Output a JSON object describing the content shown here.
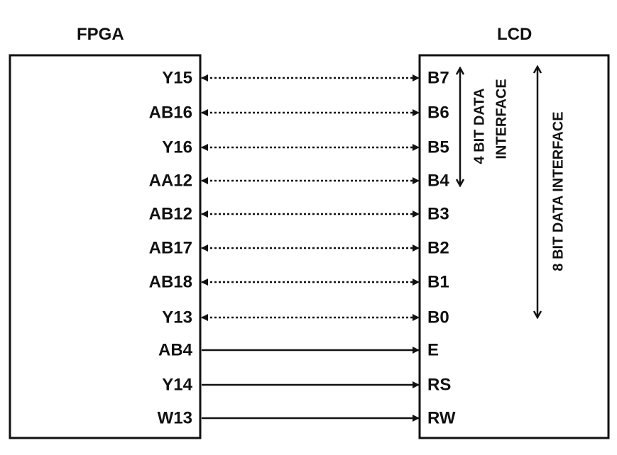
{
  "fpga": {
    "title": "FPGA"
  },
  "lcd": {
    "title": "LCD"
  },
  "connections": [
    {
      "fpga_pin": "Y15",
      "lcd_pin": "B7",
      "style": "dotted",
      "direction": "bidirectional"
    },
    {
      "fpga_pin": "AB16",
      "lcd_pin": "B6",
      "style": "dotted",
      "direction": "bidirectional"
    },
    {
      "fpga_pin": "Y16",
      "lcd_pin": "B5",
      "style": "dotted",
      "direction": "bidirectional"
    },
    {
      "fpga_pin": "AA12",
      "lcd_pin": "B4",
      "style": "dotted",
      "direction": "bidirectional"
    },
    {
      "fpga_pin": "AB12",
      "lcd_pin": "B3",
      "style": "dotted",
      "direction": "bidirectional"
    },
    {
      "fpga_pin": "AB17",
      "lcd_pin": "B2",
      "style": "dotted",
      "direction": "bidirectional"
    },
    {
      "fpga_pin": "AB18",
      "lcd_pin": "B1",
      "style": "dotted",
      "direction": "bidirectional"
    },
    {
      "fpga_pin": "Y13",
      "lcd_pin": "B0",
      "style": "dotted",
      "direction": "bidirectional"
    },
    {
      "fpga_pin": "AB4",
      "lcd_pin": "E",
      "style": "solid",
      "direction": "to-lcd"
    },
    {
      "fpga_pin": "Y14",
      "lcd_pin": "RS",
      "style": "solid",
      "direction": "to-lcd"
    },
    {
      "fpga_pin": "W13",
      "lcd_pin": "RW",
      "style": "solid",
      "direction": "to-lcd"
    }
  ],
  "interfaces": {
    "four_bit": {
      "line1": "4 BIT DATA",
      "line2": "INTERFACE",
      "from_pin": "B7",
      "to_pin": "B4"
    },
    "eight_bit": {
      "label": "8 BIT DATA INTERFACE",
      "from_pin": "B7",
      "to_pin": "B0"
    }
  },
  "colors": {
    "ink": "#111111",
    "background": "#ffffff"
  }
}
